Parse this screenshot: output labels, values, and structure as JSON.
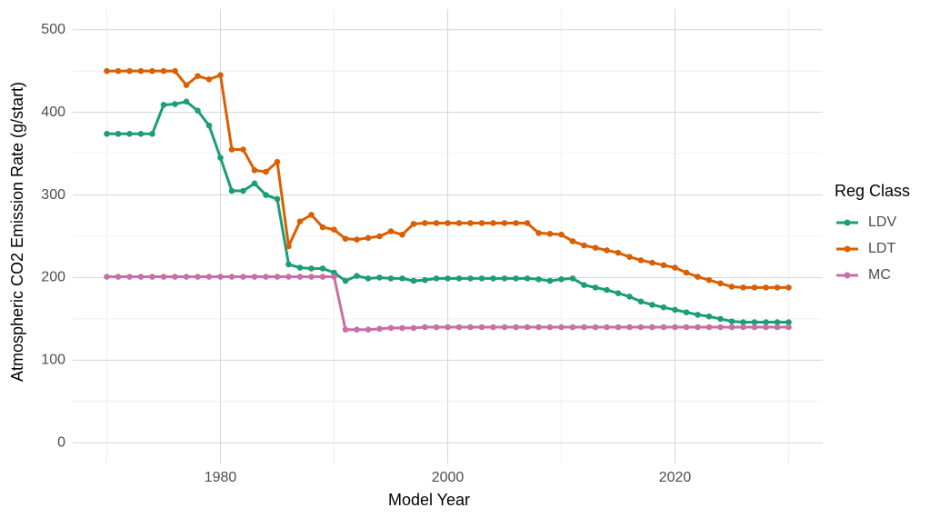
{
  "chart_data": {
    "type": "line",
    "x_label": "Model Year",
    "y_label": "Atmospheric CO2 Emission Rate (g/start)",
    "legend_title": "Reg Class",
    "legend": "right",
    "grid": true,
    "x": [
      1970,
      1971,
      1972,
      1973,
      1974,
      1975,
      1976,
      1977,
      1978,
      1979,
      1980,
      1981,
      1982,
      1983,
      1984,
      1985,
      1986,
      1987,
      1988,
      1989,
      1990,
      1991,
      1992,
      1993,
      1994,
      1995,
      1996,
      1997,
      1998,
      1999,
      2000,
      2001,
      2002,
      2003,
      2004,
      2005,
      2006,
      2007,
      2008,
      2009,
      2010,
      2011,
      2012,
      2013,
      2014,
      2015,
      2016,
      2017,
      2018,
      2019,
      2020,
      2021,
      2022,
      2023,
      2024,
      2025,
      2026,
      2027,
      2028,
      2029,
      2030
    ],
    "xlim": [
      1967,
      2033
    ],
    "xticks": [
      1980,
      2000,
      2020
    ],
    "x_minor_ticks": [
      1970,
      1990,
      2010,
      2030
    ],
    "ylim": [
      -25,
      525
    ],
    "yticks": [
      0,
      100,
      200,
      300,
      400,
      500
    ],
    "y_minor_ticks": [
      50,
      150,
      250,
      350,
      450
    ],
    "series": [
      {
        "name": "LDV",
        "color": "#1b9e77",
        "values": [
          374,
          374,
          374,
          374,
          374,
          409,
          410,
          413,
          402,
          384,
          345,
          305,
          305,
          314,
          300,
          295,
          216,
          212,
          211,
          211,
          206,
          196,
          202,
          199,
          200,
          199,
          199,
          196,
          197,
          199,
          199,
          199,
          199,
          199,
          199,
          199,
          199,
          199,
          198,
          196,
          198,
          199,
          191,
          188,
          185,
          181,
          177,
          171,
          167,
          164,
          161,
          158,
          155,
          153,
          150,
          147,
          146,
          146,
          146,
          146,
          146
        ]
      },
      {
        "name": "LDT",
        "color": "#d95f02",
        "values": [
          450,
          450,
          450,
          450,
          450,
          450,
          450,
          433,
          444,
          440,
          445,
          355,
          355,
          330,
          328,
          340,
          238,
          268,
          276,
          261,
          258,
          247,
          246,
          248,
          250,
          256,
          252,
          265,
          266,
          266,
          266,
          266,
          266,
          266,
          266,
          266,
          266,
          266,
          254,
          253,
          252,
          244,
          239,
          236,
          233,
          230,
          225,
          221,
          218,
          215,
          212,
          206,
          201,
          197,
          193,
          189,
          188,
          188,
          188,
          188,
          188
        ]
      },
      {
        "name": "MC",
        "color": "#c86fa4",
        "values": [
          201,
          201,
          201,
          201,
          201,
          201,
          201,
          201,
          201,
          201,
          201,
          201,
          201,
          201,
          201,
          201,
          201,
          201,
          201,
          201,
          201,
          137,
          137,
          137,
          138,
          139,
          139,
          139,
          140,
          140,
          140,
          140,
          140,
          140,
          140,
          140,
          140,
          140,
          140,
          140,
          140,
          140,
          140,
          140,
          140,
          140,
          140,
          140,
          140,
          140,
          140,
          140,
          140,
          140,
          140,
          140,
          140,
          140,
          140,
          140,
          140
        ]
      }
    ]
  }
}
